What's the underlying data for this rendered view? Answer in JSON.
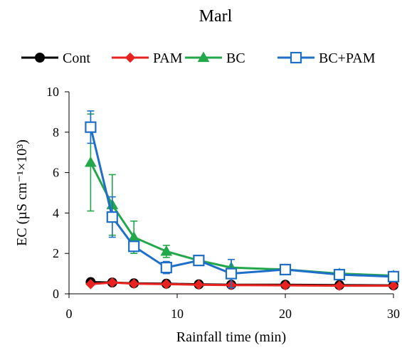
{
  "chart_data": {
    "type": "line",
    "title": "Marl",
    "xlabel": "Rainfall time (min)",
    "ylabel": "EC (µS cm⁻¹×10³)",
    "xlim": [
      0,
      30
    ],
    "ylim": [
      0,
      10
    ],
    "xticks": [
      0,
      10,
      20,
      30
    ],
    "yticks": [
      0,
      2,
      4,
      6,
      8,
      10
    ],
    "grid": false,
    "legend_position": "top",
    "series": [
      {
        "name": "Cont",
        "color": "#000000",
        "marker": "circle-filled",
        "x": [
          2,
          4,
          6,
          9,
          12,
          15,
          20,
          25,
          30
        ],
        "y": [
          0.58,
          0.56,
          0.52,
          0.5,
          0.47,
          0.45,
          0.45,
          0.43,
          0.42
        ],
        "err": [
          0.05,
          0.05,
          0.04,
          0.04,
          0.03,
          0.03,
          0.03,
          0.03,
          0.03
        ]
      },
      {
        "name": "PAM",
        "color": "#e8231f",
        "marker": "diamond-filled",
        "x": [
          2,
          4,
          6,
          9,
          12,
          15,
          20,
          25,
          30
        ],
        "y": [
          0.48,
          0.56,
          0.5,
          0.48,
          0.45,
          0.43,
          0.42,
          0.4,
          0.4
        ],
        "err": [
          0.05,
          0.05,
          0.04,
          0.04,
          0.03,
          0.03,
          0.03,
          0.03,
          0.03
        ]
      },
      {
        "name": "BC",
        "color": "#22a84a",
        "marker": "triangle-filled",
        "x": [
          2,
          4,
          6,
          9,
          12,
          15,
          20,
          25,
          30
        ],
        "y": [
          6.5,
          4.4,
          2.8,
          2.1,
          1.65,
          1.3,
          1.2,
          1.0,
          0.9
        ],
        "err": [
          2.4,
          1.5,
          0.8,
          0.3,
          0.15,
          0.4,
          0.1,
          0.1,
          0.1
        ]
      },
      {
        "name": "BC+PAM",
        "color": "#1f6fc9",
        "marker": "square-open",
        "x": [
          2,
          4,
          6,
          9,
          12,
          15,
          20,
          25,
          30
        ],
        "y": [
          8.25,
          3.8,
          2.35,
          1.3,
          1.65,
          1.0,
          1.2,
          0.95,
          0.85
        ],
        "err": [
          0.8,
          1.0,
          0.2,
          0.3,
          0.15,
          0.7,
          0.1,
          0.1,
          0.1
        ]
      }
    ]
  }
}
